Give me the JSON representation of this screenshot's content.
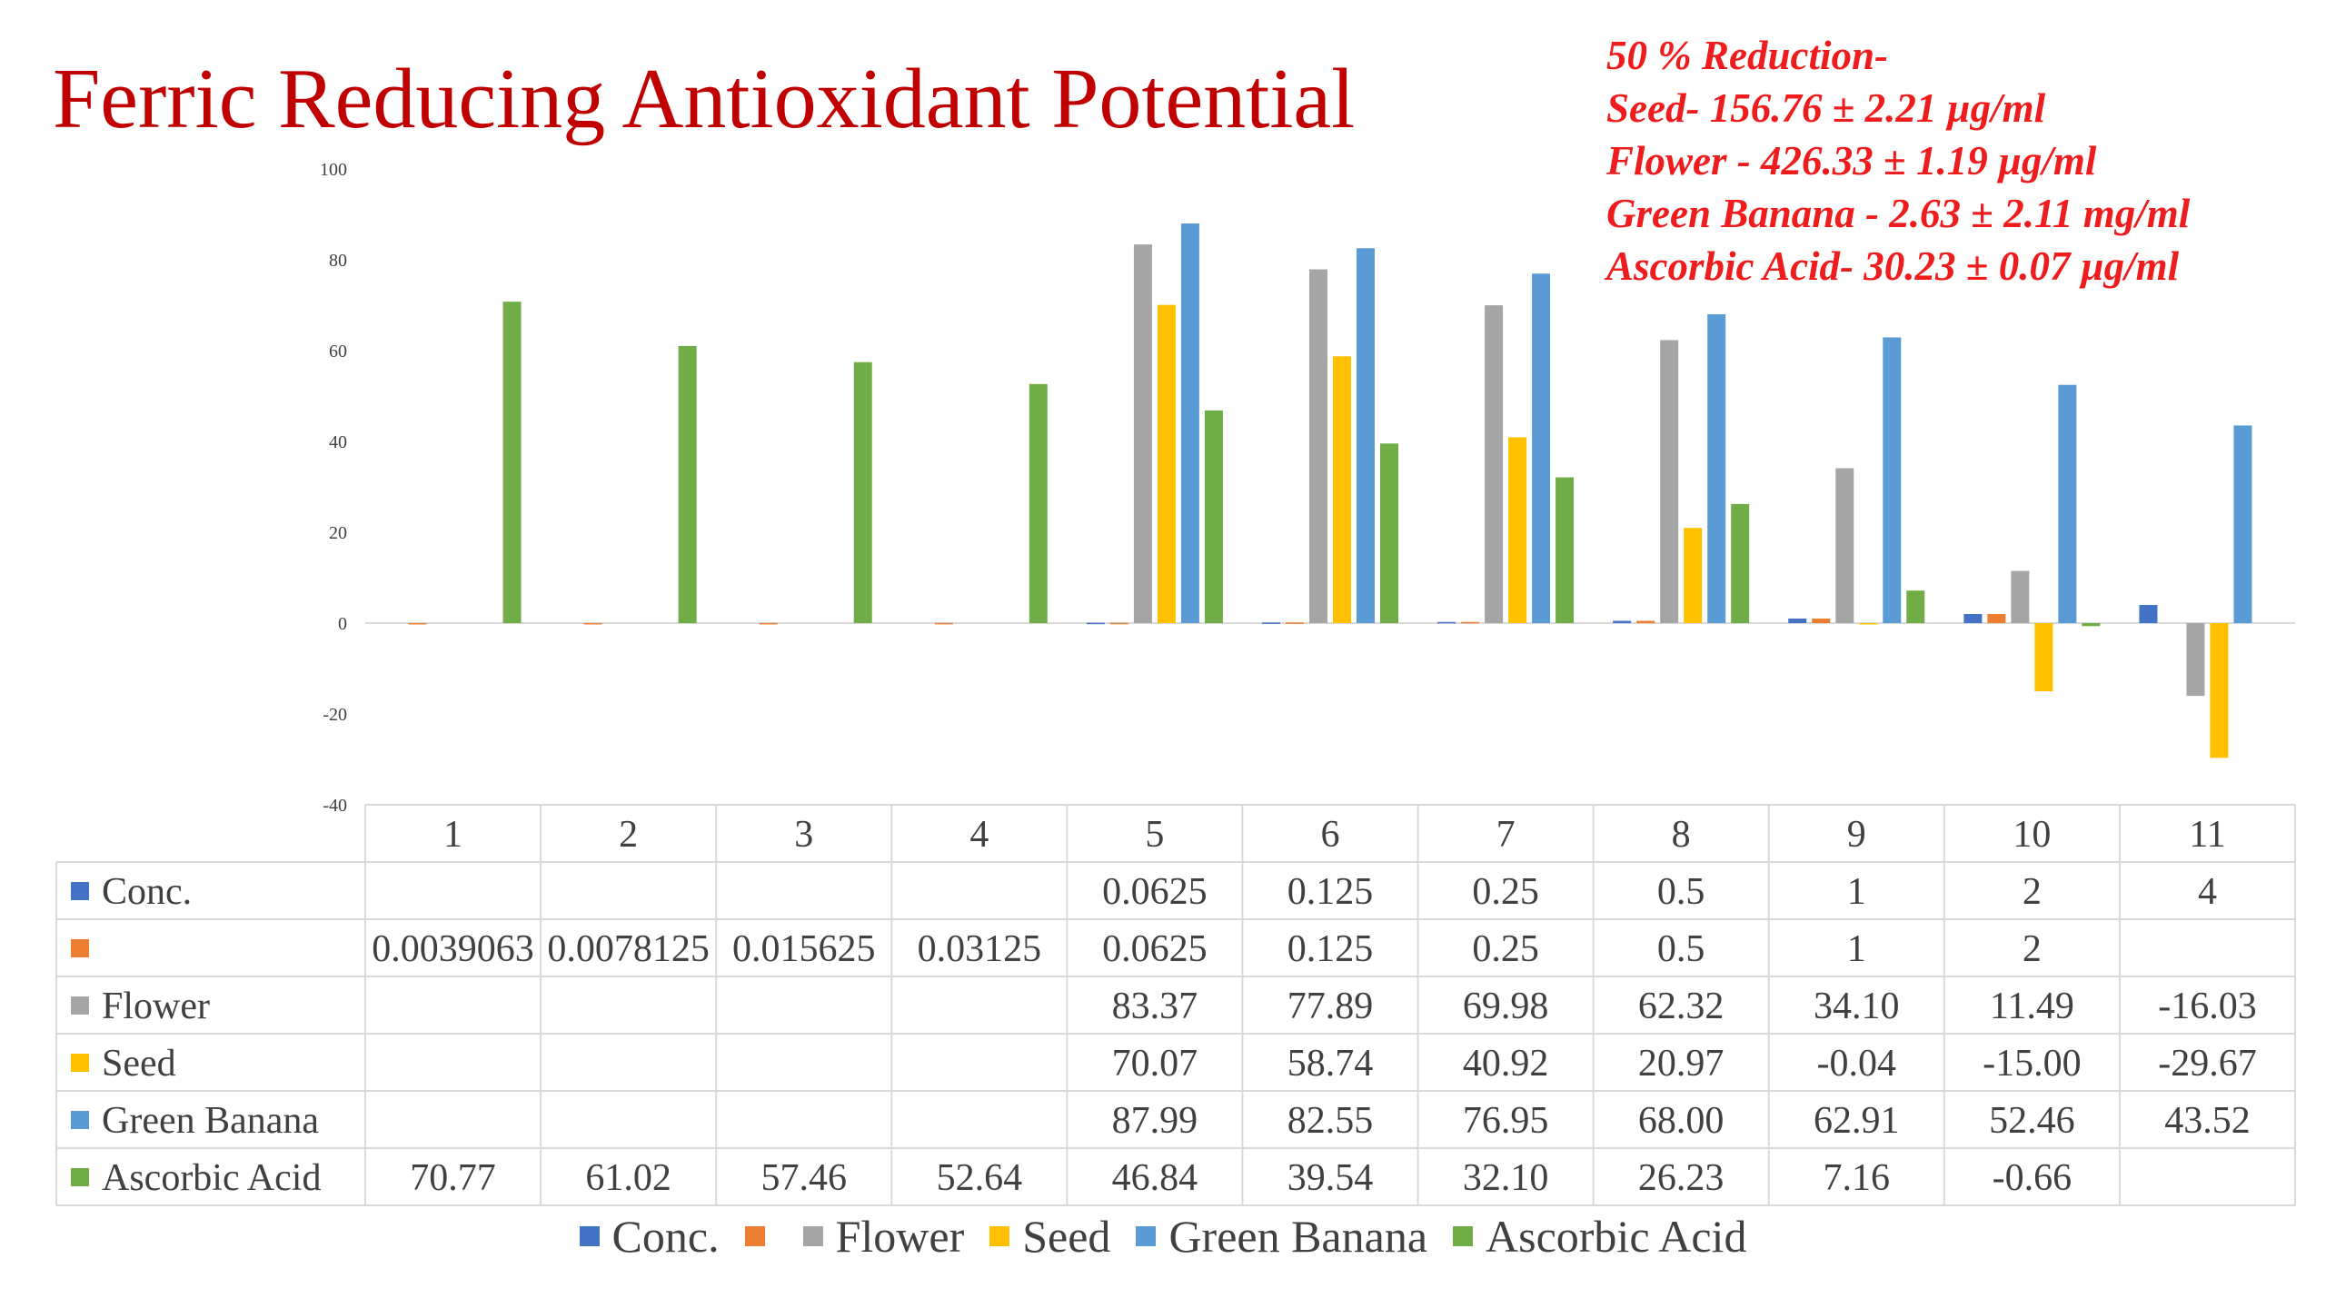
{
  "chart_data": {
    "type": "bar",
    "title": "Ferric Reducing Antioxidant Potential",
    "categories": [
      "1",
      "2",
      "3",
      "4",
      "5",
      "6",
      "7",
      "8",
      "9",
      "10",
      "11"
    ],
    "ylim": [
      -40,
      100
    ],
    "yticks": [
      100,
      80,
      60,
      40,
      20,
      0,
      -20,
      -40
    ],
    "ytick_labels": [
      "100",
      "80",
      "60",
      "40",
      "20",
      "0",
      "-20",
      "-40"
    ],
    "series": [
      {
        "name": "Conc.",
        "color": "#4472c4",
        "values": [
          null,
          null,
          null,
          null,
          0.0625,
          0.125,
          0.25,
          0.5,
          1,
          2,
          4
        ],
        "labels": [
          "",
          "",
          "",
          "",
          "0.0625",
          "0.125",
          "0.25",
          "0.5",
          "1",
          "2",
          "4"
        ]
      },
      {
        "name": "",
        "color": "#ed7d31",
        "values": [
          0.0039063,
          0.0078125,
          0.015625,
          0.03125,
          0.0625,
          0.125,
          0.25,
          0.5,
          1,
          2,
          null
        ],
        "labels": [
          "0.0039063",
          "0.0078125",
          "0.015625",
          "0.03125",
          "0.0625",
          "0.125",
          "0.25",
          "0.5",
          "1",
          "2",
          ""
        ]
      },
      {
        "name": "Flower",
        "color": "#a5a5a5",
        "values": [
          null,
          null,
          null,
          null,
          83.37,
          77.89,
          69.98,
          62.32,
          34.1,
          11.49,
          -16.03
        ],
        "labels": [
          "",
          "",
          "",
          "",
          "83.37",
          "77.89",
          "69.98",
          "62.32",
          "34.10",
          "11.49",
          "-16.03"
        ]
      },
      {
        "name": "Seed",
        "color": "#ffc000",
        "values": [
          null,
          null,
          null,
          null,
          70.07,
          58.74,
          40.92,
          20.97,
          -0.04,
          -15.0,
          -29.67
        ],
        "labels": [
          "",
          "",
          "",
          "",
          "70.07",
          "58.74",
          "40.92",
          "20.97",
          "-0.04",
          "-15.00",
          "-29.67"
        ]
      },
      {
        "name": "Green Banana",
        "color": "#5b9bd5",
        "values": [
          null,
          null,
          null,
          null,
          87.99,
          82.55,
          76.95,
          68.0,
          62.91,
          52.46,
          43.52
        ],
        "labels": [
          "",
          "",
          "",
          "",
          "87.99",
          "82.55",
          "76.95",
          "68.00",
          "62.91",
          "52.46",
          "43.52"
        ]
      },
      {
        "name": "Ascorbic Acid",
        "color": "#70ad47",
        "values": [
          70.77,
          61.02,
          57.46,
          52.64,
          46.84,
          39.54,
          32.1,
          26.23,
          7.16,
          -0.66,
          null
        ],
        "labels": [
          "70.77",
          "61.02",
          "57.46",
          "52.64",
          "46.84",
          "39.54",
          "32.10",
          "26.23",
          "7.16",
          "-0.66",
          ""
        ]
      }
    ],
    "annotations": [
      "50 % Reduction-",
      "Seed- 156.76 ± 2.21 µg/ml",
      "Flower - 426.33 ±  1.19 µg/ml",
      "Green Banana - 2.63 ± 2.11 mg/ml",
      "Ascorbic Acid- 30.23 ±  0.07 µg/ml"
    ],
    "legend_position": "bottom",
    "data_table": true,
    "grid": false
  },
  "colors": {
    "title": "#c00000",
    "annotation": "#ee1c1c",
    "text": "#404040",
    "table_border": "#d9d9d9",
    "axis": "#d9d9d9"
  }
}
